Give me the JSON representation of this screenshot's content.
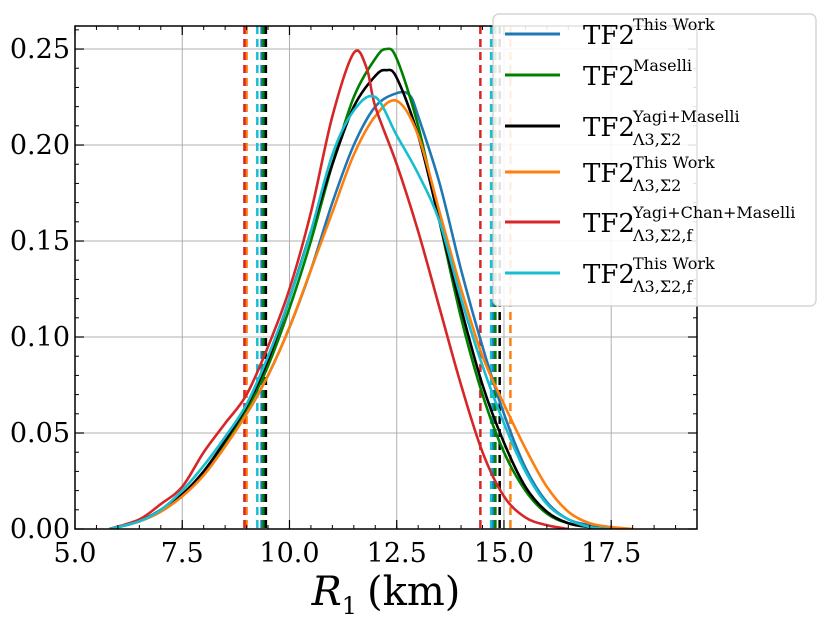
{
  "chart_data": {
    "type": "line",
    "xlabel": "R_1 (km)",
    "xlabel_main": "R",
    "xlabel_sub": "1",
    "xlabel_unit": "(km)",
    "ylabel": "",
    "xlim": [
      5.0,
      19.5
    ],
    "ylim": [
      0.0,
      0.262
    ],
    "xticks": [
      5.0,
      7.5,
      10.0,
      12.5,
      15.0,
      17.5
    ],
    "xtick_labels": [
      "5.0",
      "7.5",
      "10.0",
      "12.5",
      "15.0",
      "17.5"
    ],
    "yticks": [
      0.0,
      0.05,
      0.1,
      0.15,
      0.2,
      0.25
    ],
    "ytick_labels": [
      "0.00",
      "0.05",
      "0.10",
      "0.15",
      "0.20",
      "0.25"
    ],
    "grid": true,
    "legend_position": "top-right",
    "series": [
      {
        "name": "TF2^{This Work}",
        "legend_base": "TF2",
        "legend_sup": "This Work",
        "legend_sub": "",
        "color": "#1f77b4",
        "x": [
          5.8,
          6.5,
          7.0,
          7.5,
          8.0,
          8.5,
          9.0,
          9.5,
          10.0,
          10.5,
          11.0,
          11.5,
          12.0,
          12.5,
          12.8,
          13.0,
          13.5,
          14.0,
          14.5,
          15.0,
          15.5,
          16.0,
          16.5,
          17.0,
          17.5,
          18.0
        ],
        "y": [
          0.0,
          0.004,
          0.01,
          0.018,
          0.03,
          0.045,
          0.06,
          0.08,
          0.105,
          0.135,
          0.17,
          0.2,
          0.22,
          0.227,
          0.226,
          0.215,
          0.18,
          0.135,
          0.095,
          0.06,
          0.032,
          0.014,
          0.005,
          0.002,
          0.0005,
          0.0
        ],
        "interval": [
          9.35,
          14.75
        ]
      },
      {
        "name": "TF2^{Maselli}",
        "legend_base": "TF2",
        "legend_sup": "Maselli",
        "legend_sub": "",
        "color": "#008000",
        "x": [
          5.8,
          6.5,
          7.0,
          7.5,
          8.0,
          8.5,
          9.0,
          9.5,
          10.0,
          10.5,
          11.0,
          11.5,
          12.0,
          12.25,
          12.5,
          13.0,
          13.5,
          14.0,
          14.5,
          15.0,
          15.5,
          16.0,
          16.5,
          17.0,
          17.5
        ],
        "y": [
          0.0,
          0.004,
          0.01,
          0.018,
          0.03,
          0.045,
          0.062,
          0.085,
          0.115,
          0.15,
          0.19,
          0.225,
          0.245,
          0.25,
          0.245,
          0.21,
          0.16,
          0.11,
          0.07,
          0.04,
          0.02,
          0.008,
          0.003,
          0.001,
          0.0
        ],
        "interval": [
          9.4,
          14.8
        ]
      },
      {
        "name": "TF2_{Λ3,Σ2}^{Yagi+Maselli}",
        "legend_base": "TF2",
        "legend_sup": "Yagi+Maselli",
        "legend_sub": "Λ3,Σ2",
        "color": "#000000",
        "x": [
          5.8,
          6.5,
          7.0,
          7.5,
          8.0,
          8.5,
          9.0,
          9.5,
          10.0,
          10.5,
          11.0,
          11.5,
          12.0,
          12.25,
          12.5,
          13.0,
          13.5,
          14.0,
          14.5,
          15.0,
          15.5,
          16.0,
          16.5,
          17.0,
          17.5
        ],
        "y": [
          0.0,
          0.004,
          0.01,
          0.018,
          0.03,
          0.046,
          0.064,
          0.088,
          0.12,
          0.155,
          0.19,
          0.22,
          0.236,
          0.239,
          0.235,
          0.205,
          0.16,
          0.115,
          0.075,
          0.045,
          0.022,
          0.009,
          0.003,
          0.001,
          0.0
        ],
        "interval": [
          9.45,
          14.9
        ]
      },
      {
        "name": "TF2_{Λ3,Σ2}^{This Work}",
        "legend_base": "TF2",
        "legend_sup": "This Work",
        "legend_sub": "Λ3,Σ2",
        "color": "#ff7f0e",
        "x": [
          5.8,
          6.5,
          7.0,
          7.5,
          8.0,
          8.5,
          9.0,
          9.5,
          10.0,
          10.5,
          11.0,
          11.5,
          12.0,
          12.5,
          13.0,
          13.5,
          14.0,
          14.5,
          15.0,
          15.5,
          16.0,
          16.5,
          17.0,
          17.5,
          18.0
        ],
        "y": [
          0.0,
          0.004,
          0.009,
          0.017,
          0.028,
          0.043,
          0.06,
          0.08,
          0.105,
          0.135,
          0.165,
          0.195,
          0.215,
          0.223,
          0.205,
          0.165,
          0.125,
          0.09,
          0.065,
          0.042,
          0.022,
          0.009,
          0.003,
          0.001,
          0.0
        ],
        "interval": [
          9.0,
          15.15
        ]
      },
      {
        "name": "TF2_{Λ3,Σ2,f}^{Yagi+Chan+Maselli}",
        "legend_base": "TF2",
        "legend_sup": "Yagi+Chan+Maselli",
        "legend_sub": "Λ3,Σ2,f",
        "color": "#d62728",
        "x": [
          5.8,
          6.5,
          7.0,
          7.5,
          8.0,
          8.5,
          9.0,
          9.5,
          10.0,
          10.5,
          11.0,
          11.5,
          11.8,
          12.0,
          12.5,
          13.0,
          13.5,
          14.0,
          14.5,
          15.0,
          15.5,
          16.0,
          16.5
        ],
        "y": [
          0.0,
          0.005,
          0.013,
          0.022,
          0.04,
          0.055,
          0.07,
          0.095,
          0.125,
          0.165,
          0.215,
          0.248,
          0.24,
          0.22,
          0.19,
          0.155,
          0.115,
          0.075,
          0.04,
          0.017,
          0.006,
          0.002,
          0.0
        ],
        "interval": [
          8.95,
          14.45
        ]
      },
      {
        "name": "TF2_{Λ3,Σ2,f}^{This Work}",
        "legend_base": "TF2",
        "legend_sup": "This Work",
        "legend_sub": "Λ3,Σ2,f",
        "color": "#17becf",
        "x": [
          5.8,
          6.5,
          7.0,
          7.5,
          8.0,
          8.5,
          9.0,
          9.5,
          10.0,
          10.5,
          11.0,
          11.5,
          12.0,
          12.5,
          13.0,
          13.5,
          14.0,
          14.5,
          15.0,
          15.5,
          16.0,
          16.5,
          17.0,
          17.5
        ],
        "y": [
          0.0,
          0.004,
          0.01,
          0.02,
          0.033,
          0.048,
          0.065,
          0.09,
          0.12,
          0.155,
          0.195,
          0.218,
          0.225,
          0.205,
          0.185,
          0.16,
          0.12,
          0.085,
          0.055,
          0.03,
          0.013,
          0.005,
          0.001,
          0.0
        ],
        "interval": [
          9.25,
          14.7
        ]
      }
    ]
  }
}
